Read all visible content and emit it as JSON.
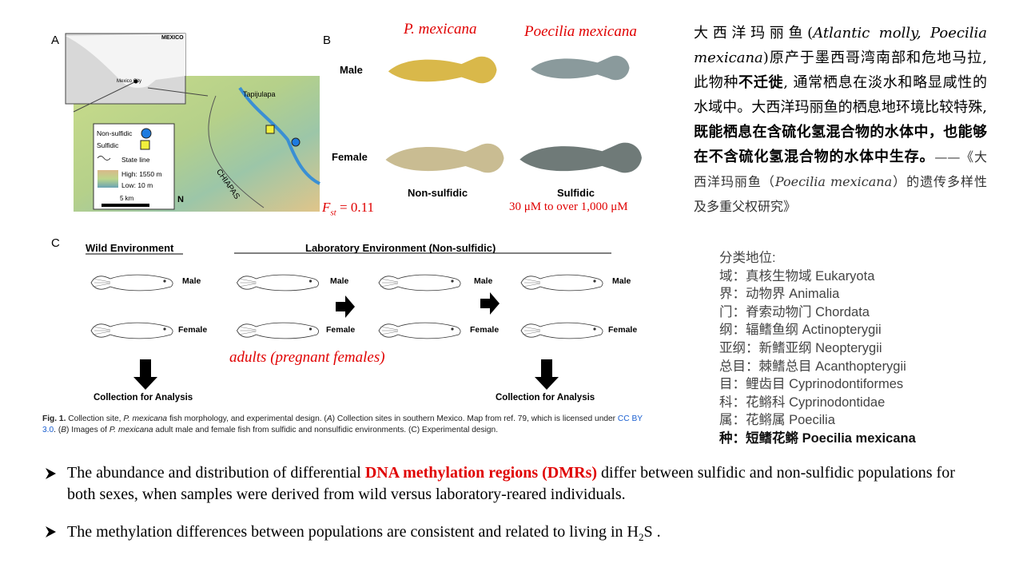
{
  "figure": {
    "panel_a": {
      "label": "A",
      "inset_country": "MEXICO",
      "inset_city": "Mexico City",
      "site": "Tapijulapa",
      "legend": [
        "Non-sulfidic",
        "Sulfidic",
        "State line",
        "High: 1550 m",
        "Low: 10 m"
      ],
      "scale": "5 km",
      "region": "CHIAPAS",
      "north": "N"
    },
    "panel_b": {
      "label": "B",
      "title_short": "P. mexicana",
      "title_full": "Poecilia mexicana",
      "rows": [
        "Male",
        "Female"
      ],
      "columns": [
        "Non-sulfidic",
        "Sulfidic"
      ],
      "fst": {
        "symbol": "F",
        "subscript": "st",
        "value": "= 0.11"
      },
      "concentration": "30 μM to over 1,000 μM"
    },
    "panel_c": {
      "label": "C",
      "wild": "Wild Environment",
      "lab": "Laboratory Environment (Non-sulfidic)",
      "sex_labels": [
        [
          "Male",
          "Female"
        ],
        [
          "Male",
          "Female"
        ],
        [
          "Male",
          "Female"
        ],
        [
          "Male",
          "Female"
        ]
      ],
      "note": "adults (pregnant females)",
      "collection": [
        "Collection for Analysis",
        "Collection for Analysis"
      ]
    },
    "caption": [
      "Fig. 1.",
      "  Collection site, ",
      "P. mexicana",
      " fish morphology, and experimental design. (",
      "A",
      ") Collection sites in southern Mexico. Map from ref. 79, which is licensed under ",
      "CC BY 3.0",
      ". (",
      "B",
      ") Images of ",
      "P. mexicana",
      " adult male and female fish from sulfidic and nonsulfidic environments. (C) Experimental design."
    ]
  },
  "description": [
    "大西洋玛丽鱼(",
    "Atlantic molly, Poecilia mexicana",
    ")原产于墨西哥湾南部和危地马拉, 此物种",
    "不迁徙",
    ", 通常栖息在淡水和略显咸性的水域中。大西洋玛丽鱼的栖息地环境比较特殊, ",
    "既能栖息在含硫化氢混合物的水体中，也能够在不含硫化氢混合物的水体中生存。",
    "——《大西洋玛丽鱼（",
    "Poecilia mexicana",
    "）的遗传多样性及多重父权研究》"
  ],
  "taxonomy": {
    "heading": "分类地位:",
    "ranks": [
      "域：真核生物域 Eukaryota",
      "界：动物界 Animalia",
      "门：脊索动物门 Chordata",
      "纲：辐鳍鱼纲 Actinopterygii",
      "亚纲：新鳍亚纲 Neopterygii",
      "总目：棘鳍总目 Acanthopterygii",
      "目：鲤齿目 Cyprinodontiformes",
      "科：花鳉科 Cyprinodontidae",
      "属：花鳉属 Poecilia",
      "种：短鳍花鳉 Poecilia mexicana"
    ]
  },
  "bullets": [
    [
      "The abundance and distribution of differential ",
      "DNA methylation regions (DMRs)",
      " differ between sulfidic and non-sulfidic populations for both sexes, when samples were derived from wild versus laboratory-reared individuals."
    ],
    [
      "The methylation differences between populations are consistent and related to living in ",
      "H",
      "2",
      "S ."
    ]
  ]
}
